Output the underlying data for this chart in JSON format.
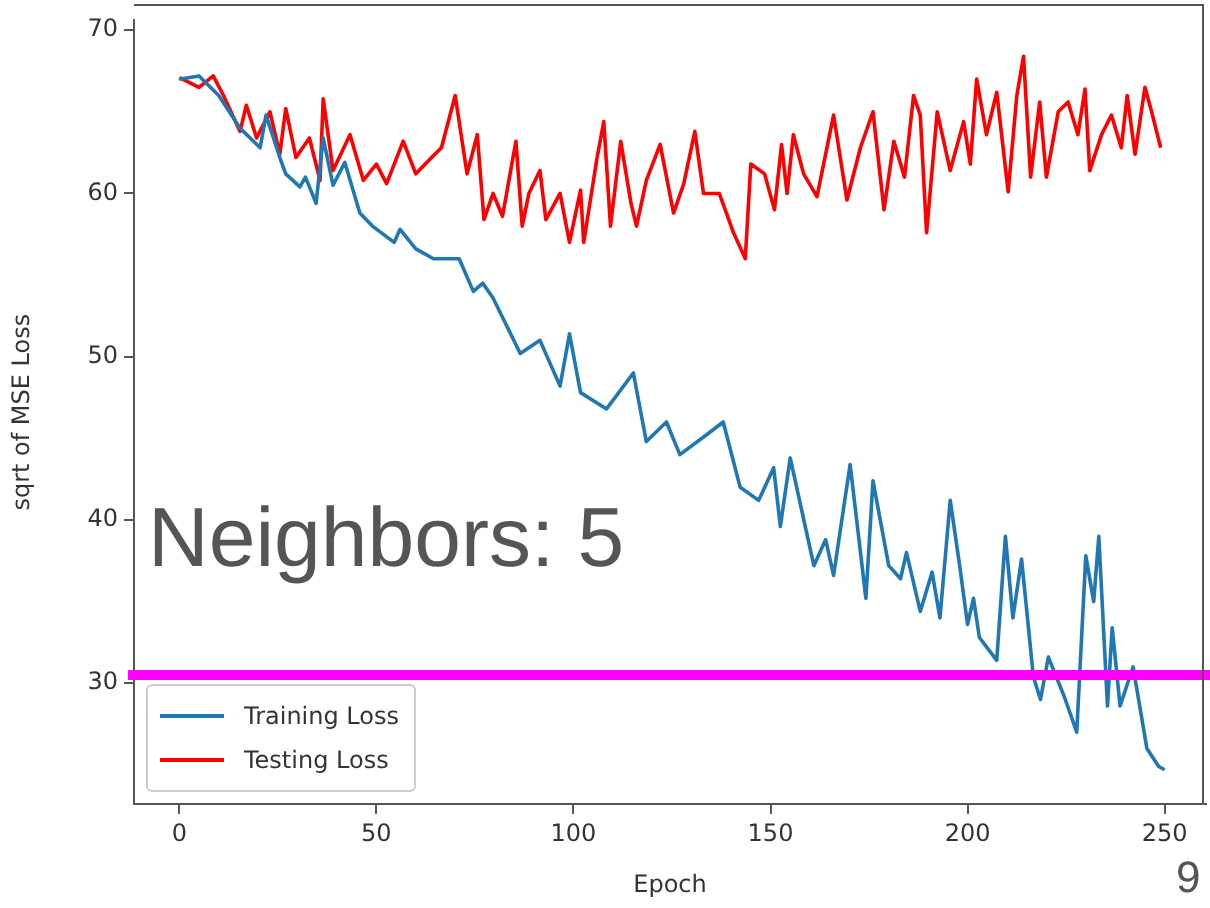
{
  "chart_data": {
    "type": "line",
    "xlabel": "Epoch",
    "ylabel": "sqrt of MSE Loss",
    "xlim": [
      -11.5,
      260.5
    ],
    "ylim": [
      22.6,
      70.6
    ],
    "xticks": [
      0,
      50,
      100,
      150,
      200,
      250
    ],
    "yticks": [
      30,
      40,
      50,
      60,
      70
    ],
    "grid": false,
    "legend": "bottom left",
    "marker": "none",
    "line_style": "solid",
    "annotations": [
      "Neighbors: 5",
      "9"
    ],
    "ref_lines": [
      {
        "axis": "y",
        "value": 30.5,
        "color": "#ff00ff"
      }
    ],
    "series": [
      {
        "name": "Training Loss",
        "color": "#1f77b4",
        "x": [
          0,
          5,
          10,
          15.4,
          20.5,
          22,
          25.5,
          27,
          30.6,
          32,
          34.7,
          36.5,
          39,
          42,
          45.8,
          49,
          54.5,
          56,
          60,
          64.5,
          71,
          74.6,
          77,
          79.6,
          86.5,
          91.5,
          96.6,
          99,
          101.8,
          108.4,
          115.2,
          118.5,
          123.6,
          127,
          133.7,
          138,
          142.3,
          147,
          150.8,
          152.5,
          155,
          159,
          161,
          164,
          166,
          170.2,
          174.2,
          176,
          180,
          183,
          184.5,
          188,
          191,
          193,
          195.6,
          198,
          200,
          201.5,
          203,
          207.4,
          209.6,
          211.5,
          213.7,
          216.7,
          218.5,
          220.5,
          224.5,
          227.7,
          230,
          232,
          233.3,
          235.5,
          236.7,
          238.7,
          242,
          245.5,
          248.5,
          250
        ],
        "values": [
          67,
          67.2,
          66,
          64,
          62.8,
          64.8,
          62.2,
          61.2,
          60.4,
          61,
          59.4,
          63.4,
          60.5,
          61.9,
          58.8,
          58,
          57,
          57.8,
          56.6,
          56,
          56,
          54,
          54.5,
          53.6,
          50.2,
          51,
          48.2,
          51.4,
          47.8,
          46.8,
          49,
          44.8,
          46,
          44,
          45.2,
          46,
          42,
          41.2,
          43.2,
          39.6,
          43.8,
          39.4,
          37.2,
          38.8,
          36.6,
          43.4,
          35.2,
          42.4,
          37.2,
          36.4,
          38,
          34.4,
          36.8,
          34,
          41.2,
          37.2,
          33.6,
          35.2,
          32.8,
          31.4,
          39,
          34,
          37.6,
          30.4,
          29,
          31.6,
          29.2,
          27,
          37.8,
          35,
          39,
          28.6,
          33.4,
          28.6,
          31,
          26,
          24.9,
          24.7
        ]
      },
      {
        "name": "Testing Loss",
        "color": "#ff0000",
        "x": [
          0,
          5,
          8.6,
          11.2,
          15.4,
          17,
          19.6,
          23,
          25.5,
          27,
          29.6,
          33,
          35.7,
          36.5,
          39,
          43.3,
          46.7,
          50,
          52.6,
          56.8,
          60,
          64,
          66.5,
          70,
          73,
          75.6,
          77.3,
          79.6,
          82,
          85.4,
          87,
          88.7,
          91.5,
          93,
          96.6,
          99,
          101.8,
          102.6,
          106,
          107.7,
          109.4,
          112,
          114.6,
          116,
          118.5,
          122,
          125.4,
          128,
          130.8,
          133,
          137,
          140.6,
          143.6,
          145,
          148.5,
          151,
          152.8,
          154.2,
          155.8,
          158.4,
          161.8,
          166,
          169.4,
          172.8,
          176,
          178.8,
          181.3,
          184,
          186.3,
          188,
          189.6,
          192.3,
          195.6,
          199,
          200.7,
          202.3,
          204.8,
          207.4,
          210.3,
          212.5,
          214.2,
          216,
          218.3,
          220,
          223,
          225.5,
          228,
          229.8,
          231,
          234,
          236.5,
          239,
          240.5,
          242.5,
          245,
          246.7,
          249
        ],
        "values": [
          67.1,
          66.5,
          67.2,
          66,
          63.8,
          65.4,
          63.4,
          65,
          62.4,
          65.2,
          62.2,
          63.4,
          60.8,
          65.8,
          61.4,
          63.6,
          60.8,
          61.8,
          60.6,
          63.2,
          61.2,
          62.2,
          62.8,
          66,
          61.2,
          63.6,
          58.4,
          60,
          58.6,
          63.2,
          58,
          60,
          61.4,
          58.4,
          60,
          57,
          60.2,
          57,
          62.2,
          64.4,
          58,
          63.2,
          59.4,
          58,
          60.8,
          63,
          58.8,
          60.6,
          63.8,
          60,
          60,
          57.6,
          56,
          61.8,
          61.2,
          59,
          63,
          60,
          63.6,
          61.2,
          59.8,
          64.8,
          59.6,
          62.8,
          65,
          59,
          63.2,
          61,
          66,
          64.8,
          57.6,
          65,
          61.4,
          64.4,
          61.8,
          67,
          63.6,
          66.2,
          60.1,
          66,
          68.4,
          61,
          65.6,
          61,
          65,
          65.6,
          63.6,
          66.4,
          61.4,
          63.6,
          64.8,
          62.8,
          66,
          62.4,
          66.5,
          65,
          62.8
        ]
      }
    ]
  }
}
